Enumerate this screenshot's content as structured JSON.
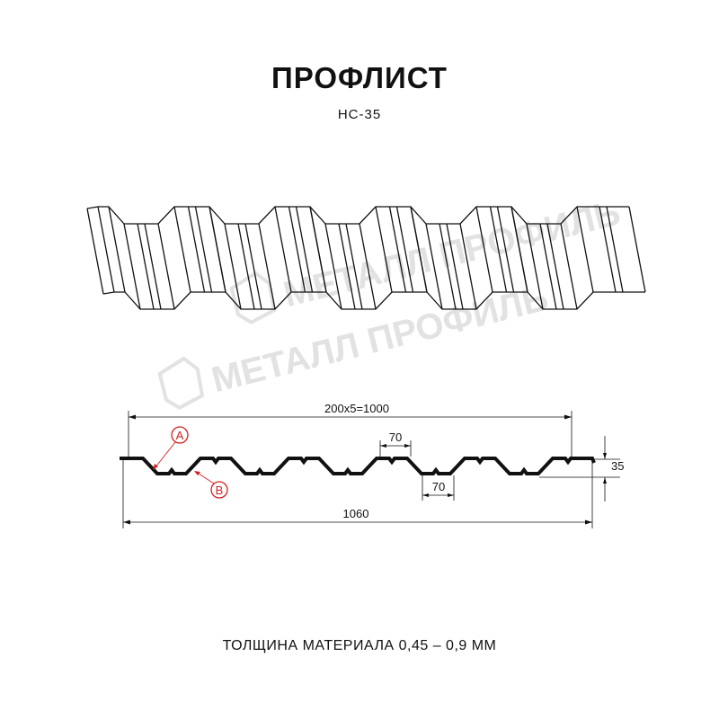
{
  "title": "ПРОФЛИСТ",
  "subtitle": "НС-35",
  "footer": "ТОЛЩИНА МАТЕРИАЛА 0,45 – 0,9 ММ",
  "watermark": "МЕТАЛЛ ПРОФИЛЬ",
  "dimensions": {
    "pitch_total": "200х5=1000",
    "overall_width": "1060",
    "top_flange": "70",
    "bottom_flange": "70",
    "height": "35"
  },
  "callouts": {
    "a": "A",
    "b": "B"
  },
  "colors": {
    "callout": "#d32020",
    "line": "#111111",
    "watermark": "#e2e2e2"
  }
}
